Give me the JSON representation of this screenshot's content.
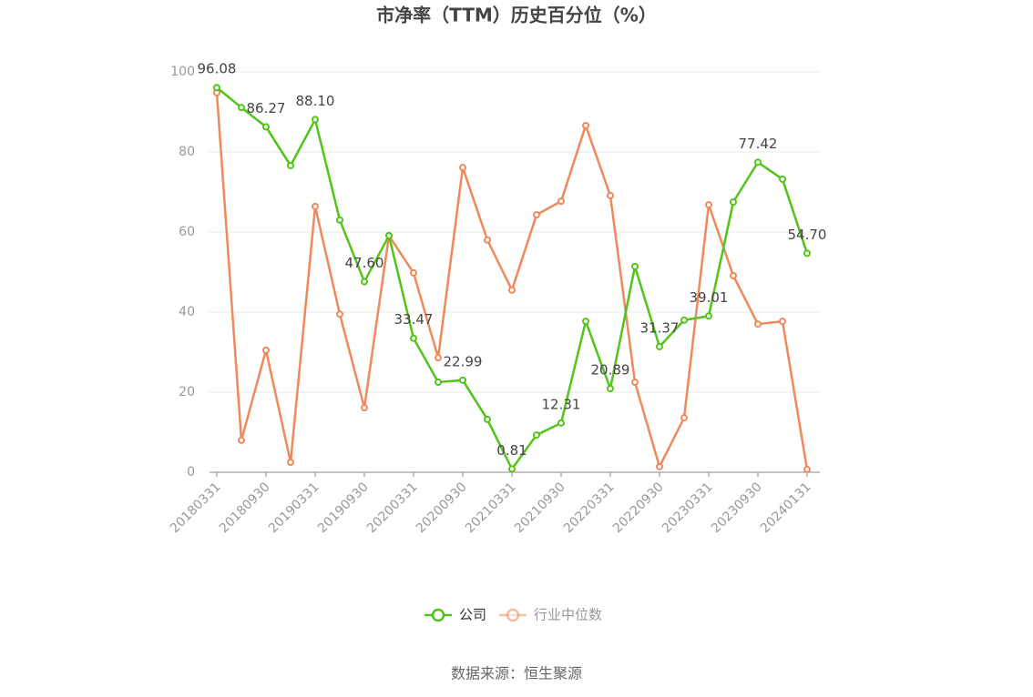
{
  "chart_data": {
    "type": "line",
    "title": "市净率（TTM）历史百分位（%）",
    "source": "数据来源：恒生聚源",
    "categories": [
      "20180331",
      null,
      "20180930",
      null,
      "20190331",
      null,
      "20190930",
      null,
      "20200331",
      null,
      "20200930",
      null,
      "20210331",
      null,
      "20210930",
      null,
      "20220331",
      null,
      "20220930",
      null,
      "20230331",
      null,
      "20230930",
      null,
      "20240131"
    ],
    "series": [
      {
        "name": "公司",
        "color": "#52c41a",
        "values": [
          96.08,
          91.1,
          86.27,
          76.6,
          88.1,
          63.0,
          47.6,
          59.1,
          33.47,
          22.5,
          22.99,
          13.2,
          0.81,
          9.3,
          12.31,
          37.7,
          20.89,
          51.4,
          31.37,
          38.0,
          39.01,
          67.5,
          77.42,
          73.2,
          54.7
        ],
        "value_labels": [
          "96.08",
          null,
          "86.27",
          null,
          "88.10",
          null,
          "47.60",
          null,
          "33.47",
          null,
          "22.99",
          null,
          "0.81",
          null,
          "12.31",
          null,
          "20.89",
          null,
          "31.37",
          null,
          "39.01",
          null,
          "77.42",
          null,
          "54.70"
        ]
      },
      {
        "name": "行业中位数",
        "color": "#f0895a",
        "values": [
          94.8,
          8.0,
          30.5,
          2.5,
          66.4,
          39.5,
          16.1,
          59.1,
          49.8,
          28.6,
          76.1,
          58.0,
          45.5,
          64.3,
          67.7,
          86.6,
          69.1,
          22.5,
          1.4,
          13.6,
          66.8,
          49.1,
          37.0,
          37.7,
          0.7
        ]
      }
    ],
    "ylim": [
      0,
      100
    ],
    "yticks": [
      0,
      20,
      40,
      60,
      80,
      100
    ],
    "grid": true
  }
}
